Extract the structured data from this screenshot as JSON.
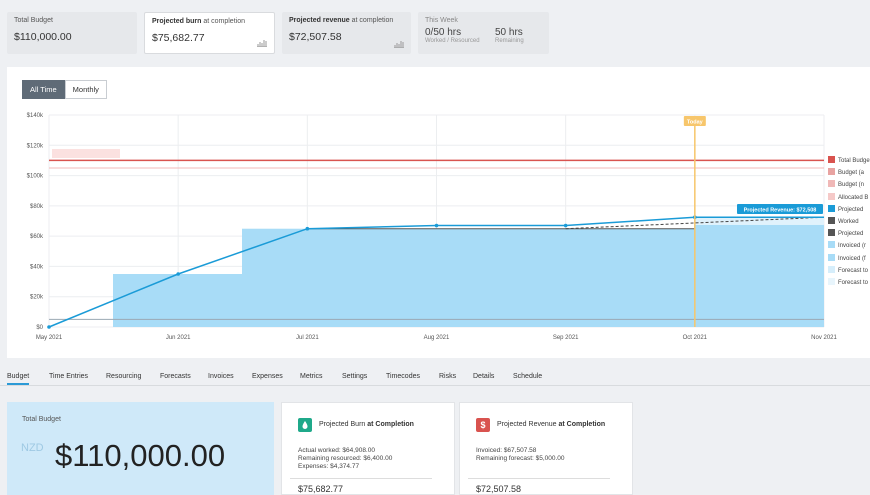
{
  "kpis": {
    "total_budget": {
      "label": "Total Budget",
      "value": "$110,000.00"
    },
    "projected_burn": {
      "label_bold": "Projected burn",
      "label_rest": " at completion",
      "value": "$75,682.77",
      "icon": "chart-icon"
    },
    "projected_revenue": {
      "label_bold": "Projected revenue",
      "label_rest": " at completion",
      "value": "$72,507.58",
      "icon": "chart-icon"
    },
    "this_week": {
      "label": "This Week",
      "worked_value": "0/50 hrs",
      "worked_sub": "Worked / Resourced",
      "remaining_value": "50 hrs",
      "remaining_sub": "Remaining"
    }
  },
  "toggle": {
    "all_time": "All Time",
    "monthly": "Monthly",
    "active": "All Time"
  },
  "chart_labels": {
    "today": "Today",
    "projected_revenue_tip": "Projected Revenue: $72,508"
  },
  "legend": [
    {
      "label": "Total Budget",
      "color": "#d9534f"
    },
    {
      "label": "Budget (a",
      "color": "#e8a3a1"
    },
    {
      "label": "Budget (n",
      "color": "#f0b8b7"
    },
    {
      "label": "Allocated B",
      "color": "#f5c9c8"
    },
    {
      "label": "Projected",
      "color": "#1a9bd7"
    },
    {
      "label": "Worked",
      "color": "#555555"
    },
    {
      "label": "Projected",
      "color": "#555555"
    },
    {
      "label": "Invoiced (r",
      "color": "#a8dcf7"
    },
    {
      "label": "Invoiced (f",
      "color": "#a8dcf7"
    },
    {
      "label": "Forecast to",
      "color": "#d6eefb"
    },
    {
      "label": "Forecast to",
      "color": "#e8f5fc"
    }
  ],
  "chart_data": {
    "type": "line",
    "x_ticks": [
      "May 2021",
      "Jun 2021",
      "Jul 2021",
      "Aug 2021",
      "Sep 2021",
      "Oct 2021",
      "Nov 2021"
    ],
    "y_ticks": [
      "$0",
      "$20k",
      "$40k",
      "$60k",
      "$80k",
      "$100k",
      "$120k",
      "$140k"
    ],
    "ylim": [
      0,
      140000
    ],
    "grid": true,
    "legend_position": "right",
    "series": [
      {
        "name": "Total Budget",
        "values": [
          110000,
          110000,
          110000,
          110000,
          110000,
          110000,
          110000
        ],
        "color": "#d9534f"
      },
      {
        "name": "Projected",
        "values": [
          0,
          35000,
          64908,
          67000,
          67000,
          72508,
          72508
        ],
        "color": "#1a9bd7"
      },
      {
        "name": "Worked",
        "values": [
          null,
          null,
          64908,
          64908,
          64908,
          64908,
          null
        ],
        "color": "#555555"
      },
      {
        "name": "Invoiced",
        "values": [
          0,
          35000,
          64908,
          64908,
          64908,
          67508,
          67508
        ],
        "color": "#a8dcf7"
      }
    ],
    "budget_lines": [
      105000,
      5000
    ],
    "today_x": 5
  },
  "tabs": [
    "Budget",
    "Time Entries",
    "Resourcing",
    "Forecasts",
    "Invoices",
    "Expenses",
    "Metrics",
    "Settings",
    "Timecodes",
    "Risks",
    "Details",
    "Schedule"
  ],
  "active_tab": "Budget",
  "total_budget_card": {
    "label": "Total Budget",
    "currency": "NZD",
    "value": "$110,000.00"
  },
  "burn_card": {
    "title_rest": "Projected Burn ",
    "title_bold": "at Completion",
    "icon_color": "#1fa98a",
    "line1": "Actual worked: $64,908.00",
    "line2": "Remaining resourced: $6,400.00",
    "line3": "Expenses: $4,374.77",
    "total": "$75,682.77"
  },
  "revenue_card": {
    "title_rest": "Projected Revenue ",
    "title_bold": "at Completion",
    "icon_color": "#d9534f",
    "line1": "Invoiced: $67,507.58",
    "line2": "Remaining forecast: $5,000.00",
    "total": "$72,507.58"
  }
}
